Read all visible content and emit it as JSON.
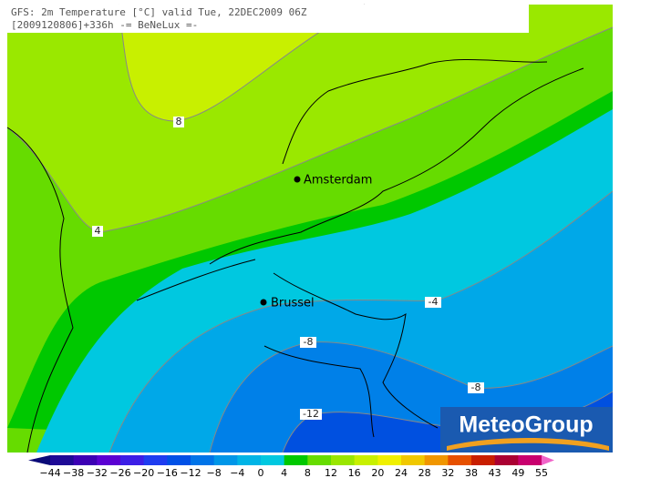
{
  "header": {
    "line1": "GFS: 2m Temperature [°C] valid Tue, 22DEC2009 06Z",
    "line2": "[2009120806]+336h -= BeNeLux =-"
  },
  "cities": [
    {
      "label": "Amsterdam"
    },
    {
      "label": "Brussel"
    }
  ],
  "contour_labels": [
    "8",
    "4",
    "-4",
    "-8",
    "-8",
    "-12"
  ],
  "logo": "MeteoGroup",
  "colorbar": {
    "labels": [
      "−44",
      "−38",
      "−32",
      "−26",
      "−20",
      "−16",
      "−12",
      "−8",
      "−4",
      "0",
      "4",
      "8",
      "12",
      "16",
      "20",
      "24",
      "28",
      "32",
      "38",
      "43",
      "49",
      "55"
    ],
    "colors": [
      "#0a0a78",
      "#1e0a96",
      "#3c00b4",
      "#5a00d2",
      "#3c1ee6",
      "#1e3cf0",
      "#0050e6",
      "#0074e8",
      "#0096e8",
      "#00b4e6",
      "#00c8e0",
      "#00c800",
      "#66dc00",
      "#9ae600",
      "#c8f000",
      "#f0f000",
      "#f0c800",
      "#f09600",
      "#e65000",
      "#c81e00",
      "#aa0032",
      "#c8006e",
      "#f064c8"
    ]
  }
}
